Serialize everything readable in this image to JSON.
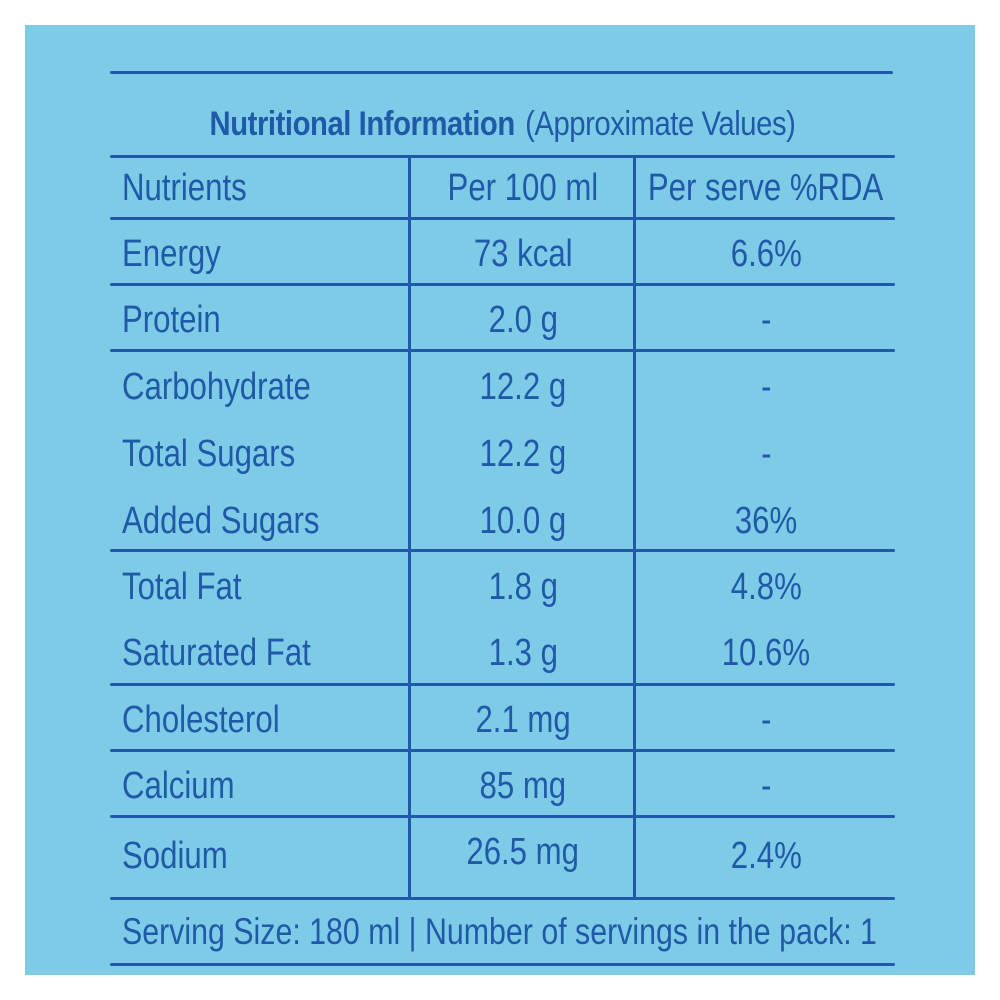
{
  "title": {
    "bold": "Nutritional Information",
    "normal": "(Approximate Values)"
  },
  "headers": [
    "Nutrients",
    "Per 100 ml",
    "Per serve %RDA"
  ],
  "rows": [
    {
      "nutrient": "Energy",
      "per100": "73 kcal",
      "rda": "6.6%"
    },
    {
      "nutrient": "Protein",
      "per100": "2.0 g",
      "rda": "-"
    },
    {
      "nutrient": "Carbohydrate",
      "per100": "12.2 g",
      "rda": "-"
    },
    {
      "nutrient": "Total Sugars",
      "per100": "12.2 g",
      "rda": "-"
    },
    {
      "nutrient": "Added Sugars",
      "per100": "10.0 g",
      "rda": "36%"
    },
    {
      "nutrient": "Total Fat",
      "per100": "1.8 g",
      "rda": "4.8%"
    },
    {
      "nutrient": "Saturated Fat",
      "per100": "1.3 g",
      "rda": "10.6%"
    },
    {
      "nutrient": "Cholesterol",
      "per100": "2.1 mg",
      "rda": "-"
    },
    {
      "nutrient": "Calcium",
      "per100": "85 mg",
      "rda": "-"
    },
    {
      "nutrient": "Sodium",
      "per100": "26.5 mg",
      "rda": "2.4%"
    }
  ],
  "footer": "Serving Size: 180 ml | Number of servings in the pack: 1",
  "colors": {
    "background": "#7ecbe8",
    "ink": "#1f5aa8"
  }
}
